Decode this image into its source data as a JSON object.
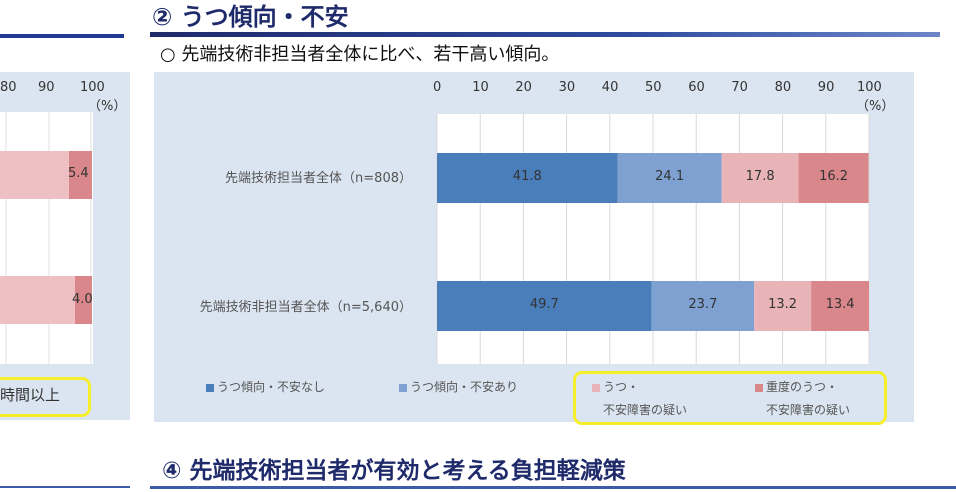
{
  "section_title": "② うつ傾向・不安",
  "subtitle": "○ 先端技術非担当者全体に比べ、若干高い傾向。",
  "bottom_title": "④ 先端技術担当者が有効と考える負担軽減策",
  "left_chart": {
    "ticks": [
      "80",
      "90",
      "100"
    ],
    "unit": "（%）",
    "labels": [
      "5.4",
      "4.0"
    ],
    "legend_fragment": "時間以上"
  },
  "chart_data": {
    "type": "bar",
    "orientation": "horizontal",
    "stacked": true,
    "categories": [
      "先端技術担当者全体（n=808）",
      "先端技術非担当者全体（n=5,640）"
    ],
    "series": [
      {
        "name": "うつ傾向・不安なし",
        "values": [
          41.8,
          49.7
        ],
        "color": "#4a7ebb"
      },
      {
        "name": "うつ傾向・不安あり",
        "values": [
          24.1,
          23.7
        ],
        "color": "#7ea1d2"
      },
      {
        "name": "うつ・不安障害の疑い",
        "values": [
          17.8,
          13.2
        ],
        "color": "#e8b4b8"
      },
      {
        "name": "重度のうつ・不安障害の疑い",
        "values": [
          16.2,
          13.4
        ],
        "color": "#d9878b"
      }
    ],
    "xlim": [
      0,
      100
    ],
    "xticks": [
      "0",
      "10",
      "20",
      "30",
      "40",
      "50",
      "60",
      "70",
      "80",
      "90",
      "100"
    ],
    "unit": "（%）",
    "grid": true,
    "legend_position": "bottom",
    "legend_labels": [
      [
        "うつ傾向・不安なし"
      ],
      [
        "うつ傾向・不安あり"
      ],
      [
        "うつ・",
        "不安障害の疑い"
      ],
      [
        "重度のうつ・",
        "不安障害の疑い"
      ]
    ]
  }
}
